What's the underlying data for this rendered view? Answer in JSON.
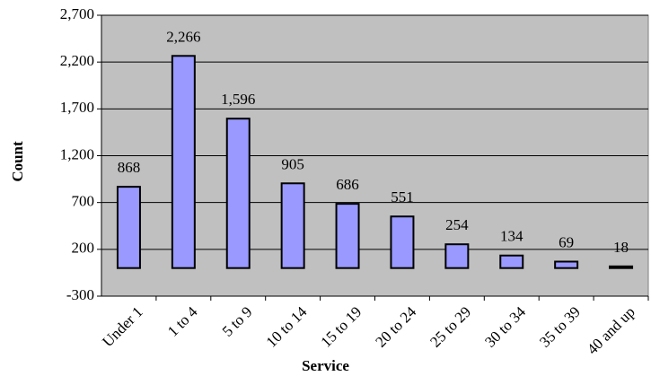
{
  "chart_data": {
    "type": "bar",
    "xlabel": "Service",
    "ylabel": "Count",
    "categories": [
      "Under 1",
      "1 to 4",
      "5 to 9",
      "10 to 14",
      "15 to 19",
      "20 to 24",
      "25 to 29",
      "30 to 34",
      "35 to 39",
      "40 and up"
    ],
    "values": [
      868,
      2266,
      1596,
      905,
      686,
      551,
      254,
      134,
      69,
      18
    ],
    "data_labels": [
      "868",
      "2,266",
      "1,596",
      "905",
      "686",
      "551",
      "254",
      "134",
      "69",
      "18"
    ],
    "ylim": [
      -300,
      2700
    ],
    "yticks": [
      -300,
      200,
      700,
      1200,
      1700,
      2200,
      2700
    ],
    "ytick_labels": [
      "-300",
      "200",
      "700",
      "1,200",
      "1,700",
      "2,200",
      "2,700"
    ],
    "grid": true,
    "colors": {
      "plot_background": "#c0c0c0",
      "bar_fill": "#9999ff",
      "bar_stroke": "#000000",
      "gridline": "#000000"
    }
  }
}
